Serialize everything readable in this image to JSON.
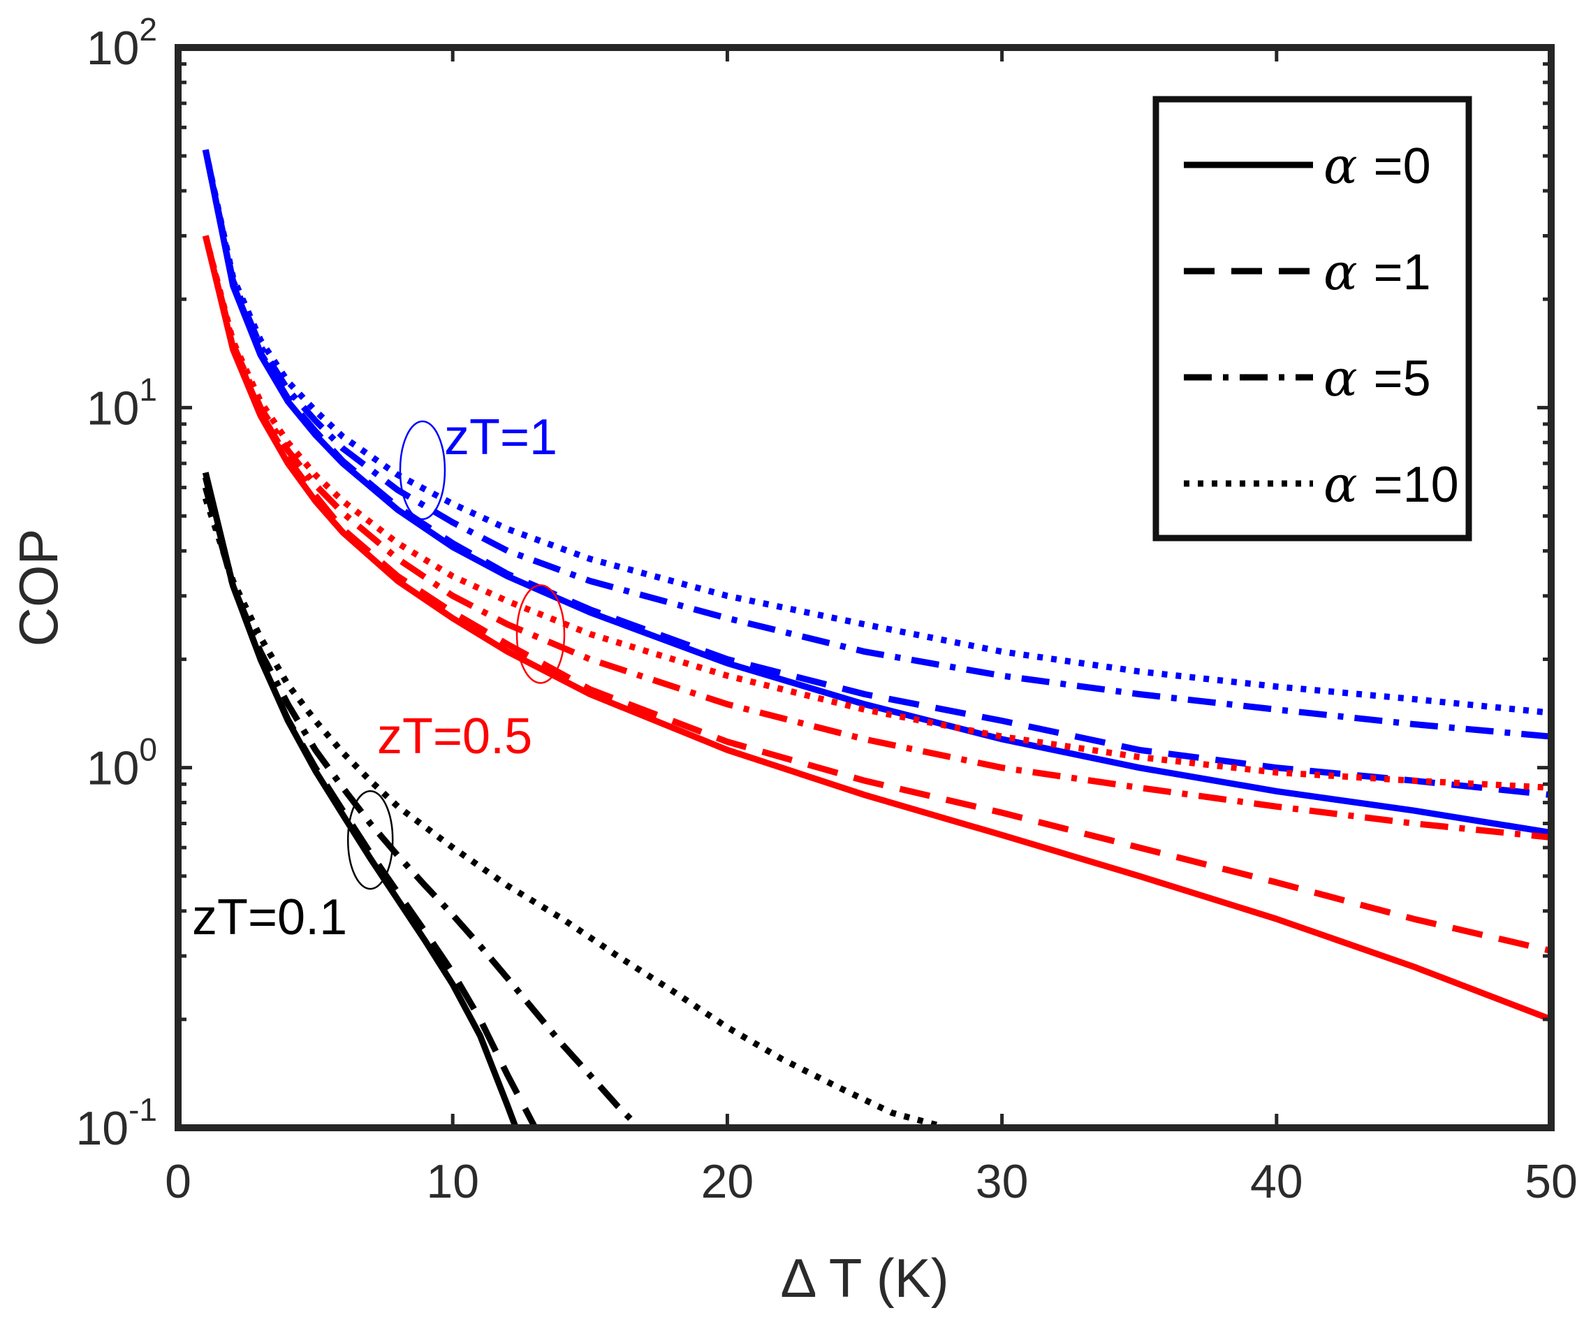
{
  "chart_data": {
    "type": "line",
    "title": "",
    "xlabel": "Δ T (K)",
    "ylabel": "COP",
    "xlim": [
      0,
      50
    ],
    "ylim": [
      0.1,
      100
    ],
    "yscale": "log",
    "x_ticks": [
      0,
      10,
      20,
      30,
      40,
      50
    ],
    "x_tick_labels": [
      "0",
      "10",
      "20",
      "30",
      "40",
      "50"
    ],
    "y_ticks": [
      {
        "value": 0.1,
        "base": "10",
        "exp": "-1"
      },
      {
        "value": 1,
        "base": "10",
        "exp": "0"
      },
      {
        "value": 10,
        "base": "10",
        "exp": "1"
      },
      {
        "value": 100,
        "base": "10",
        "exp": "2"
      }
    ],
    "grid": false,
    "legend": {
      "placement": "top-right",
      "symbol": "α",
      "entries": [
        {
          "label": "=0",
          "style": "solid"
        },
        {
          "label": "=1",
          "style": "dashed"
        },
        {
          "label": "=5",
          "style": "dashdot"
        },
        {
          "label": "=10",
          "style": "dotted"
        }
      ]
    },
    "groups": [
      {
        "label": "zT=1",
        "color": "#0000ff"
      },
      {
        "label": "zT=0.5",
        "color": "#ff0000"
      },
      {
        "label": "zT=0.1",
        "color": "#000000"
      }
    ],
    "series": [
      {
        "group": "zT=1",
        "alpha": "0",
        "style": "solid",
        "color": "#0000ff",
        "x": [
          1,
          2,
          3,
          4,
          5,
          6,
          8,
          10,
          12,
          15,
          20,
          25,
          30,
          35,
          40,
          45,
          50
        ],
        "y": [
          52,
          21.8,
          14.0,
          10.4,
          8.4,
          7.0,
          5.2,
          4.1,
          3.4,
          2.7,
          1.95,
          1.5,
          1.2,
          1.0,
          0.86,
          0.76,
          0.66
        ]
      },
      {
        "group": "zT=1",
        "alpha": "1",
        "style": "dashed",
        "color": "#0000ff",
        "x": [
          1,
          2,
          3,
          4,
          5,
          6,
          8,
          10,
          12,
          15,
          20,
          25,
          30,
          35,
          40,
          45,
          50
        ],
        "y": [
          52,
          22.0,
          14.2,
          10.6,
          8.6,
          7.1,
          5.3,
          4.2,
          3.45,
          2.75,
          2.0,
          1.6,
          1.35,
          1.12,
          1.0,
          0.92,
          0.84
        ]
      },
      {
        "group": "zT=1",
        "alpha": "5",
        "style": "dashdot",
        "color": "#0000ff",
        "x": [
          1,
          2,
          3,
          4,
          5,
          6,
          8,
          10,
          12,
          15,
          20,
          25,
          30,
          35,
          40,
          45,
          50
        ],
        "y": [
          52,
          22.5,
          14.8,
          11.2,
          9.2,
          7.7,
          5.9,
          4.8,
          4.0,
          3.3,
          2.6,
          2.1,
          1.8,
          1.6,
          1.45,
          1.32,
          1.22
        ]
      },
      {
        "group": "zT=1",
        "alpha": "10",
        "style": "dotted",
        "color": "#0000ff",
        "x": [
          1,
          2,
          3,
          4,
          5,
          6,
          8,
          10,
          12,
          15,
          20,
          25,
          30,
          35,
          40,
          45,
          50
        ],
        "y": [
          52,
          23.0,
          15.4,
          11.8,
          9.8,
          8.3,
          6.5,
          5.4,
          4.6,
          3.8,
          3.0,
          2.5,
          2.1,
          1.85,
          1.68,
          1.55,
          1.42
        ]
      },
      {
        "group": "zT=0.5",
        "alpha": "0",
        "style": "solid",
        "color": "#ff0000",
        "x": [
          1,
          2,
          3,
          4,
          5,
          6,
          8,
          10,
          12,
          15,
          20,
          25,
          30,
          35,
          40,
          45,
          50
        ],
        "y": [
          30,
          14.5,
          9.5,
          7.0,
          5.5,
          4.5,
          3.3,
          2.6,
          2.1,
          1.6,
          1.12,
          0.84,
          0.65,
          0.5,
          0.38,
          0.28,
          0.2
        ]
      },
      {
        "group": "zT=0.5",
        "alpha": "1",
        "style": "dashed",
        "color": "#ff0000",
        "x": [
          1,
          2,
          3,
          4,
          5,
          6,
          8,
          10,
          12,
          15,
          20,
          25,
          30,
          35,
          40,
          45,
          50
        ],
        "y": [
          30,
          14.7,
          9.7,
          7.2,
          5.7,
          4.6,
          3.4,
          2.7,
          2.2,
          1.65,
          1.18,
          0.92,
          0.75,
          0.6,
          0.48,
          0.38,
          0.31
        ]
      },
      {
        "group": "zT=0.5",
        "alpha": "5",
        "style": "dashdot",
        "color": "#ff0000",
        "x": [
          1,
          2,
          3,
          4,
          5,
          6,
          8,
          10,
          12,
          15,
          20,
          25,
          30,
          35,
          40,
          45,
          50
        ],
        "y": [
          30,
          15.0,
          10.0,
          7.6,
          6.1,
          5.1,
          3.8,
          3.0,
          2.5,
          2.0,
          1.5,
          1.2,
          1.0,
          0.88,
          0.78,
          0.7,
          0.64
        ]
      },
      {
        "group": "zT=0.5",
        "alpha": "10",
        "style": "dotted",
        "color": "#ff0000",
        "x": [
          1,
          2,
          3,
          4,
          5,
          6,
          8,
          10,
          12,
          15,
          20,
          25,
          30,
          35,
          40,
          45,
          50
        ],
        "y": [
          30,
          15.3,
          10.4,
          8.0,
          6.5,
          5.5,
          4.2,
          3.4,
          2.9,
          2.35,
          1.8,
          1.45,
          1.22,
          1.07,
          0.97,
          0.92,
          0.88
        ]
      },
      {
        "group": "zT=0.1",
        "alpha": "0",
        "style": "solid",
        "color": "#000000",
        "x": [
          1,
          2,
          3,
          4,
          5,
          6,
          7,
          8,
          9,
          10,
          11,
          12,
          12.3
        ],
        "y": [
          6.6,
          3.2,
          2.0,
          1.35,
          0.98,
          0.74,
          0.56,
          0.43,
          0.33,
          0.25,
          0.18,
          0.115,
          0.1
        ]
      },
      {
        "group": "zT=0.1",
        "alpha": "1",
        "style": "dashed",
        "color": "#000000",
        "x": [
          1,
          2,
          3,
          4,
          5,
          6,
          7,
          8,
          9,
          10,
          11,
          12,
          13
        ],
        "y": [
          6.4,
          3.2,
          2.0,
          1.36,
          1.0,
          0.76,
          0.58,
          0.45,
          0.35,
          0.27,
          0.2,
          0.14,
          0.1
        ]
      },
      {
        "group": "zT=0.1",
        "alpha": "5",
        "style": "dashdot",
        "color": "#000000",
        "x": [
          1,
          2,
          3,
          4,
          5,
          6,
          7,
          8,
          9,
          10,
          11,
          12,
          13,
          14,
          15,
          16,
          16.8
        ],
        "y": [
          6.0,
          3.2,
          2.1,
          1.5,
          1.12,
          0.88,
          0.7,
          0.57,
          0.47,
          0.39,
          0.32,
          0.26,
          0.21,
          0.17,
          0.14,
          0.115,
          0.1
        ]
      },
      {
        "group": "zT=0.1",
        "alpha": "10",
        "style": "dotted",
        "color": "#000000",
        "x": [
          1,
          2,
          3,
          4,
          5,
          6,
          7,
          8,
          10,
          12,
          14,
          16,
          18,
          20,
          22,
          24,
          26,
          28
        ],
        "y": [
          5.6,
          3.3,
          2.3,
          1.7,
          1.35,
          1.1,
          0.92,
          0.78,
          0.6,
          0.47,
          0.38,
          0.3,
          0.24,
          0.19,
          0.155,
          0.13,
          0.11,
          0.1
        ]
      }
    ],
    "annotations": [
      {
        "text": "zT=1",
        "color": "#0000ff"
      },
      {
        "text": "zT=0.5",
        "color": "#ff0000"
      },
      {
        "text": "zT=0.1",
        "color": "#000000"
      }
    ]
  }
}
